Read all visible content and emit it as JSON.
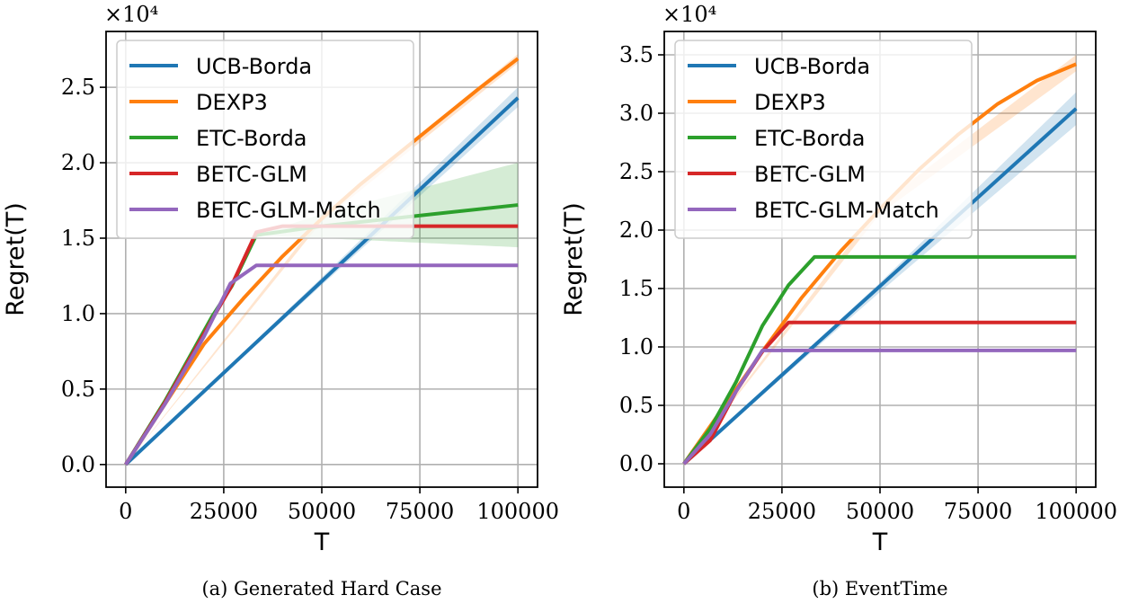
{
  "chart_data": [
    {
      "type": "line",
      "caption": "(a) Generated Hard Case",
      "xlabel": "T",
      "ylabel": "Regret(T)",
      "y_multiplier": "×10⁴",
      "xlim": [
        -5000,
        105000
      ],
      "ylim": [
        -0.15,
        2.87
      ],
      "xticks": [
        0,
        25000,
        50000,
        75000,
        100000
      ],
      "xtick_labels": [
        "0",
        "25000",
        "50000",
        "75000",
        "100000"
      ],
      "yticks": [
        0.0,
        0.5,
        1.0,
        1.5,
        2.0,
        2.5
      ],
      "ytick_labels": [
        "0.0",
        "0.5",
        "1.0",
        "1.5",
        "2.0",
        "2.5"
      ],
      "grid": true,
      "legend": "upper-left",
      "series": [
        {
          "name": "UCB-Borda",
          "color": "#1f77b4",
          "x": [
            0,
            100000
          ],
          "y": [
            0,
            2.43
          ],
          "band": {
            "x": [
              0,
              50000,
              100000
            ],
            "low": [
              0,
              1.19,
              2.37
            ],
            "high": [
              0,
              1.24,
              2.5
            ]
          }
        },
        {
          "name": "DEXP3",
          "color": "#ff7f0e",
          "x": [
            0,
            10000,
            20000,
            30000,
            40000,
            50000,
            60000,
            70000,
            80000,
            90000,
            100000
          ],
          "y": [
            0,
            0.4,
            0.8,
            1.1,
            1.38,
            1.63,
            1.86,
            2.07,
            2.28,
            2.49,
            2.69
          ],
          "band": {
            "x": [
              0,
              50000,
              100000
            ],
            "low": [
              0,
              1.61,
              2.66
            ],
            "high": [
              0,
              1.65,
              2.72
            ]
          }
        },
        {
          "name": "ETC-Borda",
          "color": "#2ca02c",
          "x": [
            0,
            10000,
            22000,
            27000,
            33300,
            50000,
            100000
          ],
          "y": [
            0,
            0.42,
            0.98,
            1.18,
            1.52,
            1.58,
            1.72
          ],
          "band": {
            "x": [
              33300,
              50000,
              75000,
              100000
            ],
            "low": [
              1.52,
              1.5,
              1.47,
              1.44
            ],
            "high": [
              1.52,
              1.66,
              1.83,
              2.0
            ]
          }
        },
        {
          "name": "BETC-GLM",
          "color": "#d62728",
          "x": [
            0,
            10000,
            22000,
            26700,
            33300,
            40000,
            100000
          ],
          "y": [
            0,
            0.41,
            0.96,
            1.17,
            1.54,
            1.58,
            1.58
          ]
        },
        {
          "name": "BETC-GLM-Match",
          "color": "#9467bd",
          "x": [
            0,
            10000,
            20000,
            26700,
            33300,
            100000
          ],
          "y": [
            0,
            0.4,
            0.85,
            1.2,
            1.32,
            1.32
          ]
        }
      ]
    },
    {
      "type": "line",
      "caption": "(b) EventTime",
      "xlabel": "T",
      "ylabel": "Regret(T)",
      "y_multiplier": "×10⁴",
      "xlim": [
        -5000,
        105000
      ],
      "ylim": [
        -0.2,
        3.7
      ],
      "xticks": [
        0,
        25000,
        50000,
        75000,
        100000
      ],
      "xtick_labels": [
        "0",
        "25000",
        "50000",
        "75000",
        "100000"
      ],
      "yticks": [
        0.0,
        0.5,
        1.0,
        1.5,
        2.0,
        2.5,
        3.0,
        3.5
      ],
      "ytick_labels": [
        "0.0",
        "0.5",
        "1.0",
        "1.5",
        "2.0",
        "2.5",
        "3.0",
        "3.5"
      ],
      "grid": true,
      "legend": "upper-left",
      "series": [
        {
          "name": "UCB-Borda",
          "color": "#1f77b4",
          "x": [
            0,
            100000
          ],
          "y": [
            0,
            3.04
          ],
          "band": {
            "x": [
              0,
              50000,
              100000
            ],
            "low": [
              0,
              1.47,
              2.9
            ],
            "high": [
              0,
              1.55,
              3.18
            ]
          }
        },
        {
          "name": "DEXP3",
          "color": "#ff7f0e",
          "x": [
            0,
            10000,
            20000,
            30000,
            40000,
            50000,
            60000,
            70000,
            80000,
            90000,
            100000
          ],
          "y": [
            0,
            0.48,
            0.96,
            1.42,
            1.82,
            2.18,
            2.52,
            2.82,
            3.08,
            3.28,
            3.42
          ],
          "band": {
            "x": [
              0,
              50000,
              100000
            ],
            "low": [
              0,
              2.14,
              3.36
            ],
            "high": [
              0,
              2.22,
              3.5
            ]
          }
        },
        {
          "name": "ETC-Borda",
          "color": "#2ca02c",
          "x": [
            0,
            6700,
            13300,
            20000,
            26700,
            33300,
            100000
          ],
          "y": [
            0,
            0.3,
            0.7,
            1.18,
            1.53,
            1.77,
            1.77
          ]
        },
        {
          "name": "BETC-GLM",
          "color": "#d62728",
          "x": [
            0,
            6700,
            13300,
            20000,
            26700,
            100000
          ],
          "y": [
            0,
            0.2,
            0.62,
            0.96,
            1.21,
            1.21
          ]
        },
        {
          "name": "BETC-GLM-Match",
          "color": "#9467bd",
          "x": [
            0,
            6700,
            13300,
            20000,
            100000
          ],
          "y": [
            0,
            0.25,
            0.62,
            0.97,
            0.97
          ]
        }
      ]
    }
  ]
}
